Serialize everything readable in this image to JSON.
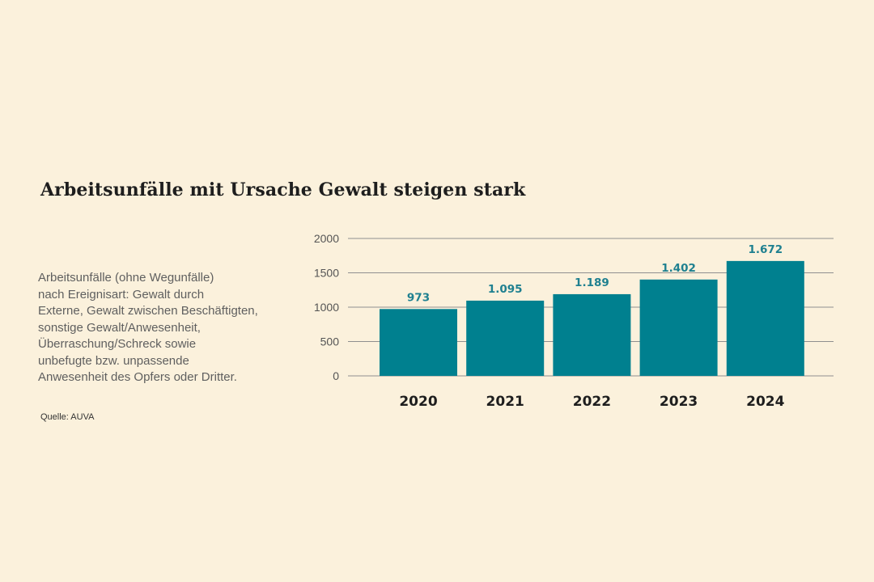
{
  "title": "Arbeitsunfälle mit Ursache Gewalt steigen stark",
  "description_lines": [
    "Arbeitsunfälle (ohne Wegunfälle)",
    "nach Ereignisart: Gewalt durch",
    "Externe, Gewalt zwischen Beschäftigten,",
    "sonstige Gewalt/Anwesenheit,",
    "Überraschung/Schreck sowie",
    "unbefugte bzw. unpassende",
    "Anwesenheit des Opfers oder Dritter."
  ],
  "source": "Quelle: AUVA",
  "chart_data": {
    "type": "bar",
    "categories": [
      "2020",
      "2021",
      "2022",
      "2023",
      "2024"
    ],
    "values": [
      973,
      1095,
      1189,
      1402,
      1672
    ],
    "value_labels": [
      "973",
      "1.095",
      "1.189",
      "1.402",
      "1.672"
    ],
    "ylim": [
      0,
      2000
    ],
    "yticks": [
      0,
      500,
      1000,
      1500,
      2000
    ],
    "ytick_labels": [
      "0",
      "500",
      "1000",
      "1500",
      "2000"
    ],
    "grid": true,
    "bar_color": "#00808f",
    "value_label_color": "#1f8090",
    "grid_color": "#8f8f8f"
  }
}
